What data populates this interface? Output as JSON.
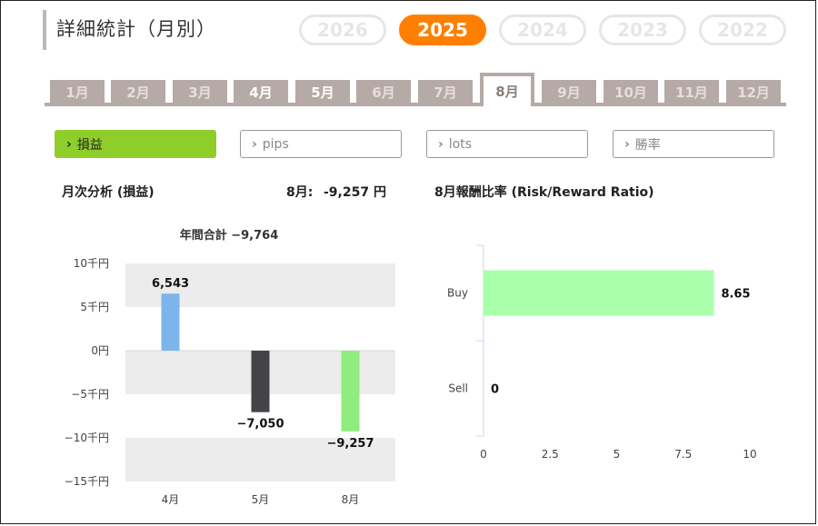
{
  "header": {
    "title": "詳細統計（月別）"
  },
  "years": [
    {
      "label": "2026",
      "active": false
    },
    {
      "label": "2025",
      "active": true
    },
    {
      "label": "2024",
      "active": false
    },
    {
      "label": "2023",
      "active": false
    },
    {
      "label": "2022",
      "active": false
    }
  ],
  "months": [
    {
      "label": "1月",
      "state": "dim"
    },
    {
      "label": "2月",
      "state": "dim"
    },
    {
      "label": "3月",
      "state": "dim"
    },
    {
      "label": "4月",
      "state": "bright"
    },
    {
      "label": "5月",
      "state": "bright"
    },
    {
      "label": "6月",
      "state": "dim"
    },
    {
      "label": "7月",
      "state": "dim"
    },
    {
      "label": "8月",
      "state": "active"
    },
    {
      "label": "9月",
      "state": "dim"
    },
    {
      "label": "10月",
      "state": "dim"
    },
    {
      "label": "11月",
      "state": "dim"
    },
    {
      "label": "12月",
      "state": "dim"
    }
  ],
  "metrics": [
    {
      "label": "損益",
      "active": true
    },
    {
      "label": "pips",
      "active": false
    },
    {
      "label": "lots",
      "active": false
    },
    {
      "label": "勝率",
      "active": false
    }
  ],
  "monthly": {
    "heading": "月次分析 (損益)",
    "current_label": "8月:",
    "current_value": "-9,257 円",
    "annual_total": "年間合計 −9,764"
  },
  "risk_reward": {
    "heading": "8月報酬比率 (Risk/Reward Ratio)"
  },
  "colors": {
    "accent_orange": "#ff7f00",
    "accent_green": "#8fce2a",
    "tab_gray": "#b6aaa6"
  },
  "chart_data": [
    {
      "type": "bar",
      "title": "年間合計 −9,764",
      "categories": [
        "4月",
        "5月",
        "8月"
      ],
      "values": [
        6543,
        -7050,
        -9257
      ],
      "value_labels": [
        "6,543",
        "−7,050",
        "−9,257"
      ],
      "colors": [
        "#7cb5ec",
        "#434348",
        "#90ed7d"
      ],
      "yticks": [
        10000,
        5000,
        0,
        -5000,
        -10000,
        -15000
      ],
      "ytick_labels": [
        "10千円",
        "5千円",
        "0円",
        "−5千円",
        "−10千円",
        "−15千円"
      ],
      "ylim": [
        -15000,
        10000
      ],
      "grid": "alternating bands"
    },
    {
      "type": "bar",
      "orientation": "horizontal",
      "categories": [
        "Buy",
        "Sell"
      ],
      "values": [
        8.65,
        0
      ],
      "value_labels": [
        "8.65",
        "0"
      ],
      "color": "#aaffaa",
      "xticks": [
        0,
        2.5,
        5,
        7.5,
        10
      ],
      "xtick_labels": [
        "0",
        "2.5",
        "5",
        "7.5",
        "10"
      ],
      "xlim": [
        0,
        10
      ]
    }
  ]
}
